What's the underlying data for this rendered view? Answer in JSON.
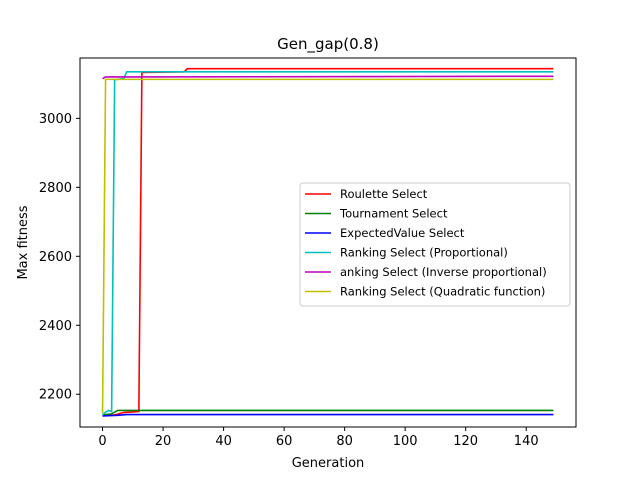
{
  "chart_data": {
    "type": "line",
    "title": "Gen_gap(0.8)",
    "xlabel": "Generation",
    "ylabel": "Max fitness",
    "xlim": [
      -7.45,
      156.45
    ],
    "ylim": [
      2105,
      3175
    ],
    "xticks": [
      0,
      20,
      40,
      60,
      80,
      100,
      120,
      140
    ],
    "yticks": [
      2200,
      2400,
      2600,
      2800,
      3000
    ],
    "grid": false,
    "legend_position": "center-right",
    "series": [
      {
        "name": "Roulette Select",
        "color": "#ff0000",
        "x": [
          0,
          4,
          7,
          12,
          13,
          27,
          28,
          149
        ],
        "y": [
          2138,
          2140,
          2147,
          2150,
          3133,
          3135,
          3144,
          3144
        ]
      },
      {
        "name": "Tournament Select",
        "color": "#008000",
        "x": [
          0,
          3,
          5,
          149
        ],
        "y": [
          2140,
          2143,
          2153,
          2153
        ]
      },
      {
        "name": "ExpectedValue Select",
        "color": "#0000ff",
        "x": [
          0,
          5,
          8,
          149
        ],
        "y": [
          2137,
          2139,
          2141,
          2141
        ]
      },
      {
        "name": "Ranking Select (Proportional)",
        "color": "#00bfbf",
        "x": [
          0,
          1,
          2,
          3,
          4,
          7,
          8,
          149
        ],
        "y": [
          2140,
          2148,
          2153,
          2150,
          3112,
          3115,
          3135,
          3135
        ]
      },
      {
        "name": "anking Select (Inverse proportional)",
        "color": "#bf00bf",
        "x": [
          0,
          1,
          149
        ],
        "y": [
          3115,
          3120,
          3122
        ]
      },
      {
        "name": "Ranking Select (Quadratic function)",
        "color": "#bfbf00",
        "x": [
          0,
          1,
          149
        ],
        "y": [
          2145,
          3113,
          3113
        ]
      }
    ]
  }
}
